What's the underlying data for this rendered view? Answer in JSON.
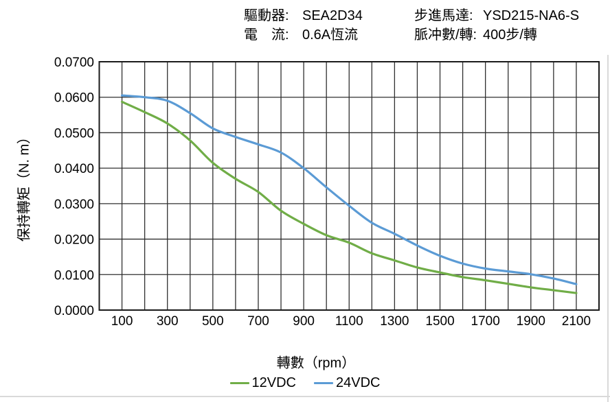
{
  "header": {
    "items": [
      {
        "label": "驅動器:",
        "value": "SEA2D34"
      },
      {
        "label": "電　流:",
        "value": "0.6A恆流"
      },
      {
        "label": "步進馬達:",
        "value": "YSD215-NA6-S"
      },
      {
        "label": "脈冲數/轉:",
        "value": "400步/轉"
      }
    ]
  },
  "chart_data": {
    "type": "line",
    "x": [
      100,
      200,
      300,
      400,
      500,
      600,
      700,
      800,
      900,
      1000,
      1100,
      1200,
      1300,
      1400,
      1500,
      1600,
      1700,
      1800,
      1900,
      2000,
      2100
    ],
    "series": [
      {
        "name": "12VDC",
        "color": "#70AD47",
        "values": [
          0.0587,
          0.0558,
          0.0526,
          0.0478,
          0.0415,
          0.037,
          0.0333,
          0.028,
          0.0243,
          0.0211,
          0.019,
          0.016,
          0.014,
          0.012,
          0.0106,
          0.0093,
          0.0084,
          0.0074,
          0.0064,
          0.0056,
          0.0048
        ]
      },
      {
        "name": "24VDC",
        "color": "#5B9BD5",
        "values": [
          0.0605,
          0.06,
          0.059,
          0.0555,
          0.0512,
          0.0488,
          0.0467,
          0.0444,
          0.04,
          0.0346,
          0.0294,
          0.0246,
          0.0215,
          0.0182,
          0.0153,
          0.0131,
          0.0117,
          0.0109,
          0.0101,
          0.0089,
          0.0073
        ]
      }
    ],
    "xlabel": "轉數（rpm）",
    "ylabel": "保持轉矩（N. m）",
    "xlim": [
      0,
      2200
    ],
    "ylim": [
      0,
      0.07
    ],
    "x_grid_step": 100,
    "y_grid_step": 0.01,
    "grid": true,
    "legend_position": "bottom",
    "x_tick_labels": [
      "100",
      "300",
      "500",
      "700",
      "900",
      "1100",
      "1300",
      "1500",
      "1700",
      "1900",
      "2100"
    ],
    "y_tick_labels": [
      "0.0000",
      "0.0100",
      "0.0200",
      "0.0300",
      "0.0400",
      "0.0500",
      "0.0600",
      "0.0700"
    ]
  }
}
